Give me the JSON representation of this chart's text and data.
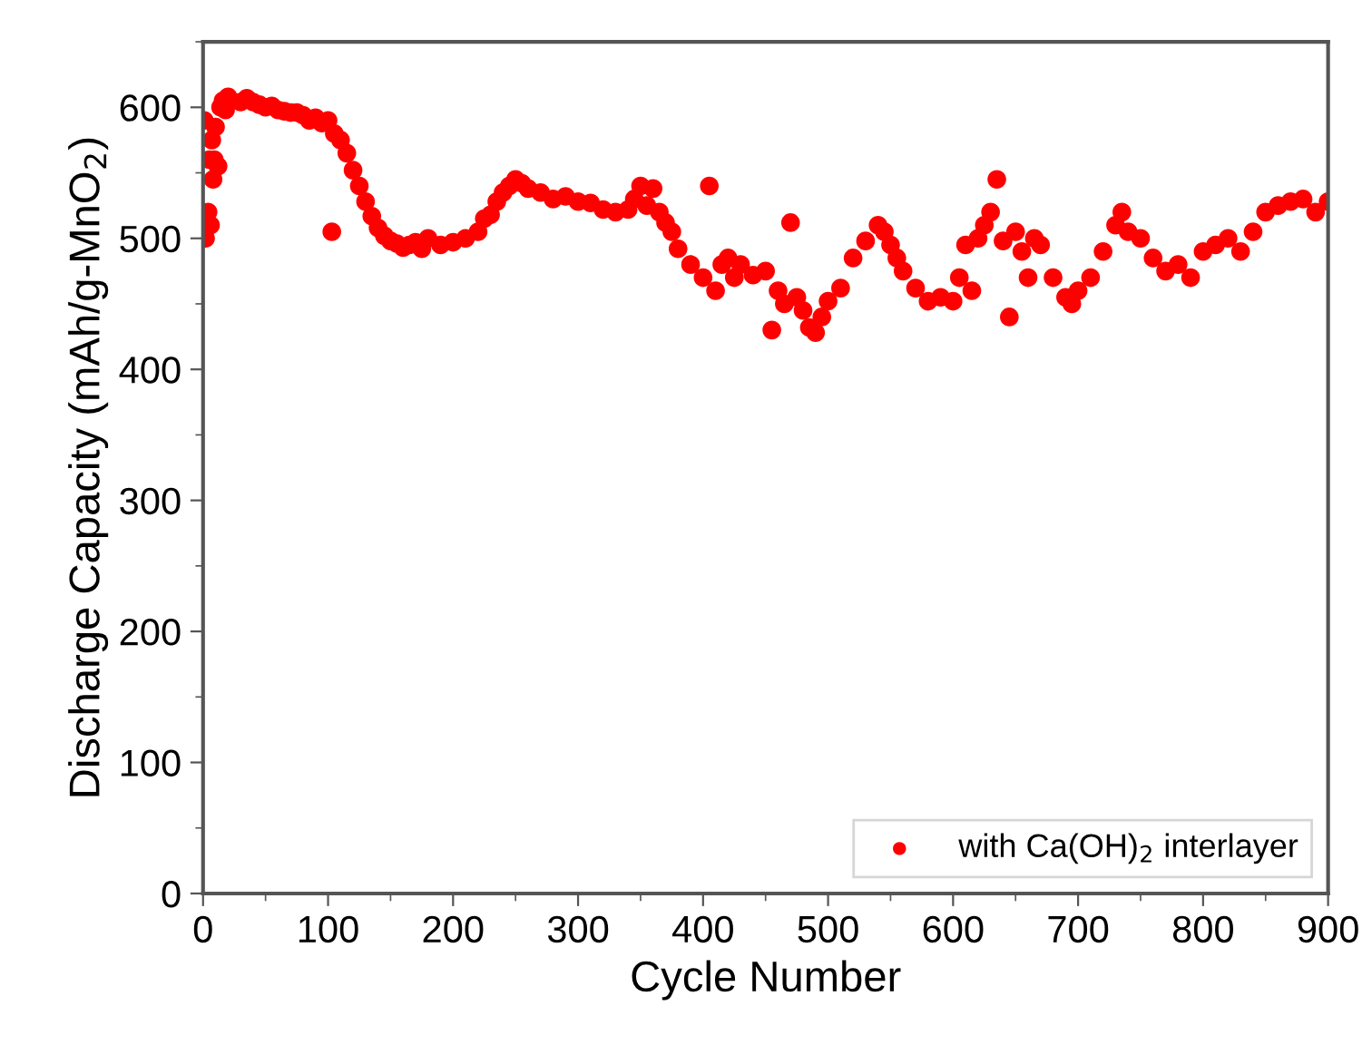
{
  "chart_data": {
    "type": "scatter",
    "xlabel": "Cycle Number",
    "ylabel": "Discharge Capacity (mAh/g-MnO$_{2}$)",
    "xlim": [
      0,
      900
    ],
    "ylim": [
      0,
      650
    ],
    "xticks": [
      0,
      100,
      200,
      300,
      400,
      500,
      600,
      700,
      800,
      900
    ],
    "yticks": [
      0,
      100,
      200,
      300,
      400,
      500,
      600
    ],
    "marker": "circle",
    "legend": "bottom right",
    "grid": false,
    "series": [
      {
        "name": "with Ca(OH)$_{2}$ interlayer",
        "color": "#ff0000",
        "x": [
          1,
          2,
          4,
          5,
          6,
          7,
          8,
          9,
          10,
          12,
          14,
          16,
          18,
          20,
          30,
          35,
          40,
          45,
          50,
          55,
          60,
          65,
          70,
          75,
          80,
          85,
          90,
          95,
          100,
          103,
          105,
          110,
          115,
          120,
          125,
          130,
          135,
          140,
          145,
          150,
          155,
          160,
          165,
          170,
          175,
          180,
          190,
          200,
          210,
          220,
          225,
          230,
          235,
          240,
          245,
          250,
          255,
          260,
          270,
          280,
          290,
          300,
          310,
          320,
          330,
          340,
          345,
          350,
          355,
          360,
          365,
          370,
          375,
          380,
          390,
          400,
          405,
          410,
          415,
          420,
          425,
          430,
          440,
          450,
          455,
          460,
          465,
          470,
          475,
          480,
          485,
          490,
          495,
          500,
          510,
          520,
          530,
          540,
          545,
          550,
          555,
          560,
          570,
          580,
          590,
          600,
          605,
          610,
          615,
          620,
          625,
          630,
          635,
          640,
          645,
          650,
          655,
          660,
          665,
          670,
          680,
          690,
          695,
          700,
          710,
          720,
          730,
          735,
          740,
          750,
          760,
          770,
          780,
          790,
          800,
          810,
          820,
          830,
          840,
          850,
          860,
          870,
          880,
          890,
          900
        ],
        "values": [
          590,
          500,
          520,
          560,
          510,
          575,
          545,
          560,
          585,
          555,
          600,
          605,
          598,
          608,
          604,
          607,
          604,
          602,
          600,
          601,
          598,
          597,
          596,
          596,
          594,
          590,
          592,
          588,
          590,
          505,
          580,
          575,
          565,
          552,
          540,
          528,
          517,
          508,
          502,
          498,
          496,
          493,
          495,
          497,
          492,
          500,
          495,
          497,
          500,
          505,
          515,
          518,
          528,
          535,
          540,
          545,
          542,
          538,
          535,
          530,
          532,
          528,
          527,
          522,
          520,
          522,
          530,
          540,
          525,
          538,
          520,
          512,
          505,
          492,
          480,
          470,
          540,
          460,
          480,
          485,
          470,
          480,
          472,
          475,
          430,
          460,
          450,
          512,
          455,
          445,
          432,
          428,
          440,
          452,
          462,
          485,
          498,
          510,
          505,
          495,
          485,
          475,
          462,
          452,
          455,
          452,
          470,
          495,
          460,
          500,
          510,
          520,
          545,
          498,
          440,
          505,
          490,
          470,
          500,
          495,
          470,
          455,
          450,
          460,
          470,
          490,
          510,
          520,
          505,
          500,
          485,
          475,
          480,
          470,
          490,
          495,
          500,
          490,
          505,
          520,
          525,
          528,
          530,
          520,
          528
        ]
      }
    ]
  }
}
